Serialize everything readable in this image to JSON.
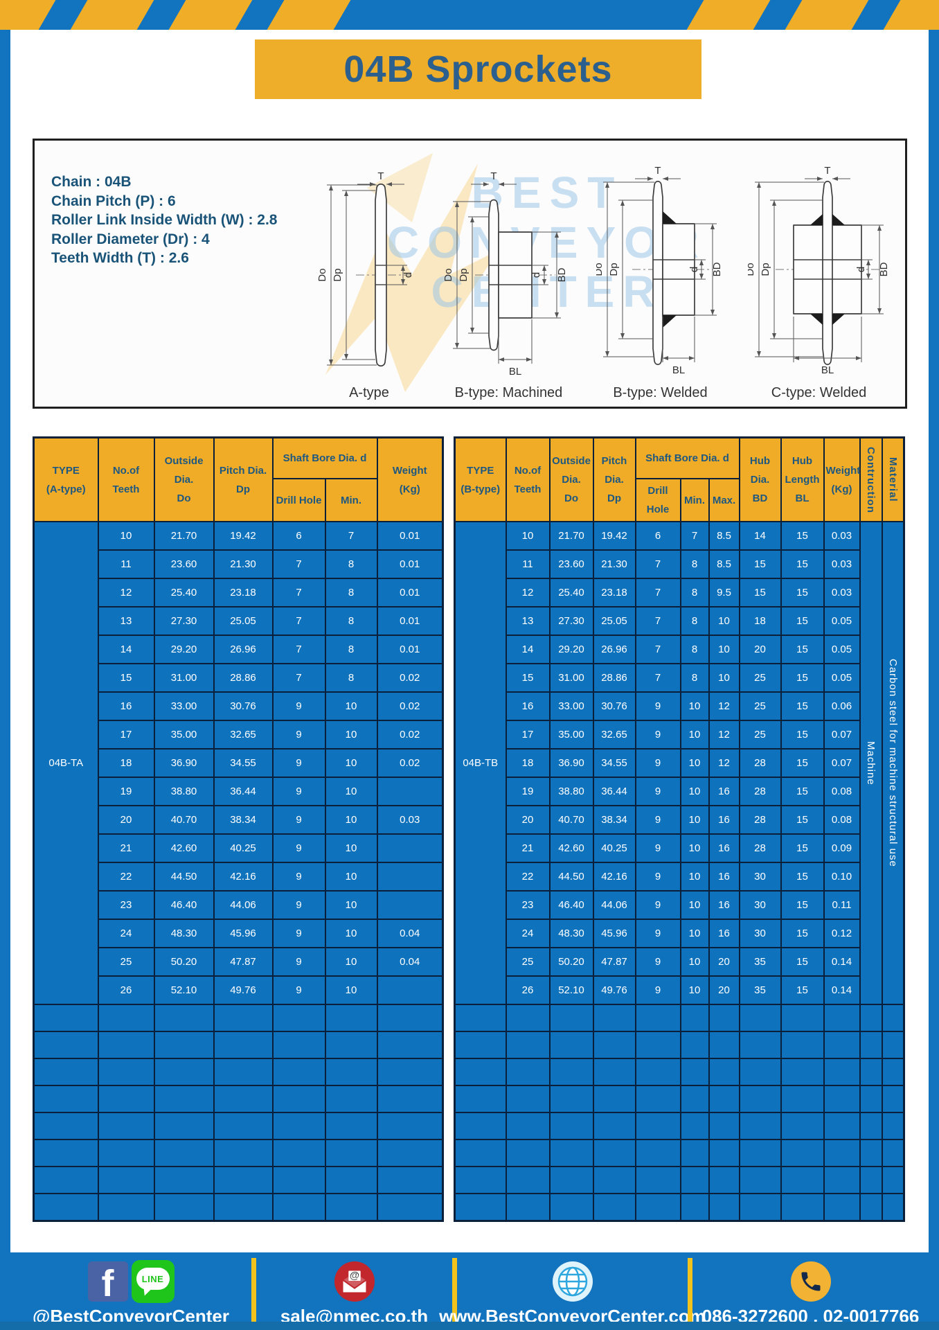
{
  "title": "04B Sprockets",
  "specs": {
    "chain": "Chain : 04B",
    "pitch": "Chain Pitch (P) : 6",
    "roller_width": "Roller Link Inside Width (W) : 2.8",
    "roller_dia": "Roller Diameter (Dr) : 4",
    "teeth_width": "Teeth Width (T) : 2.6"
  },
  "diagrams": {
    "labels": {
      "a": "A-type",
      "b_machined": "B-type: Machined",
      "b_welded": "B-type: Welded",
      "c_welded": "C-type: Welded"
    },
    "dims": {
      "t": "T",
      "do": "Do",
      "dp": "Dp",
      "d": "d",
      "bd": "BD",
      "bl": "BL"
    }
  },
  "watermark": {
    "line1": "BEST",
    "line2": "CONVEYOR",
    "line3": "CENTER"
  },
  "table_a": {
    "headers": {
      "type": "TYPE\n(A-type)",
      "teeth": "No.of\nTeeth",
      "outside": "Outside\nDia.\nDo",
      "pitch": "Pitch Dia.\nDp",
      "shaft_bore": "Shaft Bore Dia. d",
      "drill": "Drill Hole",
      "min": "Min.",
      "weight": "Weight\n(Kg)"
    },
    "type_label": "04B-TA",
    "rows": [
      [
        "10",
        "21.70",
        "19.42",
        "6",
        "7",
        "0.01"
      ],
      [
        "11",
        "23.60",
        "21.30",
        "7",
        "8",
        "0.01"
      ],
      [
        "12",
        "25.40",
        "23.18",
        "7",
        "8",
        "0.01"
      ],
      [
        "13",
        "27.30",
        "25.05",
        "7",
        "8",
        "0.01"
      ],
      [
        "14",
        "29.20",
        "26.96",
        "7",
        "8",
        "0.01"
      ],
      [
        "15",
        "31.00",
        "28.86",
        "7",
        "8",
        "0.02"
      ],
      [
        "16",
        "33.00",
        "30.76",
        "9",
        "10",
        "0.02"
      ],
      [
        "17",
        "35.00",
        "32.65",
        "9",
        "10",
        "0.02"
      ],
      [
        "18",
        "36.90",
        "34.55",
        "9",
        "10",
        "0.02"
      ],
      [
        "19",
        "38.80",
        "36.44",
        "9",
        "10",
        ""
      ],
      [
        "20",
        "40.70",
        "38.34",
        "9",
        "10",
        "0.03"
      ],
      [
        "21",
        "42.60",
        "40.25",
        "9",
        "10",
        ""
      ],
      [
        "22",
        "44.50",
        "42.16",
        "9",
        "10",
        ""
      ],
      [
        "23",
        "46.40",
        "44.06",
        "9",
        "10",
        ""
      ],
      [
        "24",
        "48.30",
        "45.96",
        "9",
        "10",
        "0.04"
      ],
      [
        "25",
        "50.20",
        "47.87",
        "9",
        "10",
        "0.04"
      ],
      [
        "26",
        "52.10",
        "49.76",
        "9",
        "10",
        ""
      ]
    ],
    "empty_rows": 8
  },
  "table_b": {
    "headers": {
      "type": "TYPE\n(B-type)",
      "teeth": "No.of\nTeeth",
      "outside": "Outside\nDia.\nDo",
      "pitch": "Pitch Dia.\nDp",
      "shaft_bore": "Shaft Bore Dia. d",
      "drill": "Drill Hole",
      "min": "Min.",
      "max": "Max.",
      "hub_dia": "Hub Dia.\nBD",
      "hub_len": "Hub\nLength\nBL",
      "weight": "Weight\n(Kg)",
      "construction": "Contruction",
      "material": "Material"
    },
    "type_label": "04B-TB",
    "construction": "Machine",
    "material": "Carbon steel for machine structural use",
    "rows": [
      [
        "10",
        "21.70",
        "19.42",
        "6",
        "7",
        "8.5",
        "14",
        "15",
        "0.03"
      ],
      [
        "11",
        "23.60",
        "21.30",
        "7",
        "8",
        "8.5",
        "15",
        "15",
        "0.03"
      ],
      [
        "12",
        "25.40",
        "23.18",
        "7",
        "8",
        "9.5",
        "15",
        "15",
        "0.03"
      ],
      [
        "13",
        "27.30",
        "25.05",
        "7",
        "8",
        "10",
        "18",
        "15",
        "0.05"
      ],
      [
        "14",
        "29.20",
        "26.96",
        "7",
        "8",
        "10",
        "20",
        "15",
        "0.05"
      ],
      [
        "15",
        "31.00",
        "28.86",
        "7",
        "8",
        "10",
        "25",
        "15",
        "0.05"
      ],
      [
        "16",
        "33.00",
        "30.76",
        "9",
        "10",
        "12",
        "25",
        "15",
        "0.06"
      ],
      [
        "17",
        "35.00",
        "32.65",
        "9",
        "10",
        "12",
        "25",
        "15",
        "0.07"
      ],
      [
        "18",
        "36.90",
        "34.55",
        "9",
        "10",
        "12",
        "28",
        "15",
        "0.07"
      ],
      [
        "19",
        "38.80",
        "36.44",
        "9",
        "10",
        "16",
        "28",
        "15",
        "0.08"
      ],
      [
        "20",
        "40.70",
        "38.34",
        "9",
        "10",
        "16",
        "28",
        "15",
        "0.08"
      ],
      [
        "21",
        "42.60",
        "40.25",
        "9",
        "10",
        "16",
        "28",
        "15",
        "0.09"
      ],
      [
        "22",
        "44.50",
        "42.16",
        "9",
        "10",
        "16",
        "30",
        "15",
        "0.10"
      ],
      [
        "23",
        "46.40",
        "44.06",
        "9",
        "10",
        "16",
        "30",
        "15",
        "0.11"
      ],
      [
        "24",
        "48.30",
        "45.96",
        "9",
        "10",
        "16",
        "30",
        "15",
        "0.12"
      ],
      [
        "25",
        "50.20",
        "47.87",
        "9",
        "10",
        "20",
        "35",
        "15",
        "0.14"
      ],
      [
        "26",
        "52.10",
        "49.76",
        "9",
        "10",
        "20",
        "35",
        "15",
        "0.14"
      ]
    ],
    "empty_rows": 8
  },
  "footer": {
    "fb_icon_text": "f",
    "line_icon_text": "LINE",
    "social_handle": "@BestConveyorCenter",
    "email": "sale@nmec.co.th",
    "website": "www.BestConveyorCenter.com",
    "phone": "086-3272600 , 02-0017766"
  },
  "colors": {
    "border_blue": "#1273BE",
    "cell_blue": "#0F72BD",
    "accent_yellow": "#F0AC27",
    "header_text_navy": "#1E5880",
    "grid_navy": "#0A1F3A",
    "footer_separator_yellow": "#F2C31D"
  }
}
